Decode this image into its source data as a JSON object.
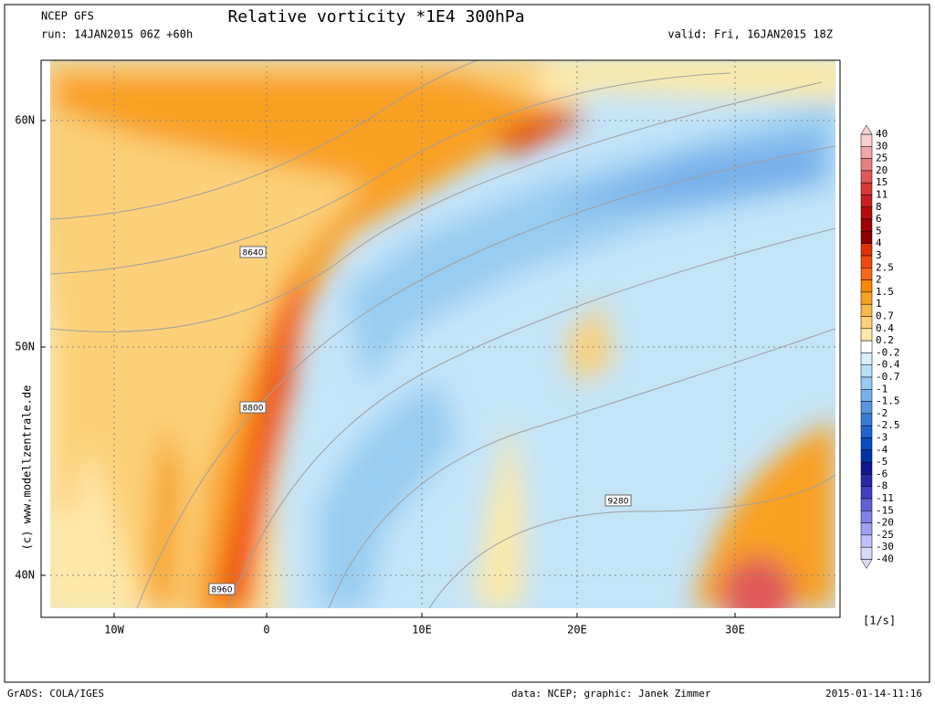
{
  "header": {
    "model": "NCEP GFS",
    "run": "run: 14JAN2015 06Z +60h",
    "title": "Relative vorticity *1E4 300hPa",
    "valid": "valid: Fri, 16JAN2015 18Z"
  },
  "map": {
    "lat_labels": [
      "60N",
      "50N",
      "40N"
    ],
    "lon_labels": [
      "10W",
      "0",
      "10E",
      "20E",
      "30E"
    ],
    "contour_labels": [
      "8640",
      "8800",
      "8960",
      "9280"
    ],
    "credit": "(c) www.modellzentrale.de"
  },
  "colorbar": {
    "labels": [
      "40",
      "30",
      "25",
      "20",
      "15",
      "11",
      "8",
      "6",
      "5",
      "4",
      "3",
      "2.5",
      "2",
      "1.5",
      "1",
      "0.7",
      "0.4",
      "0.2",
      "-0.2",
      "-0.4",
      "-0.7",
      "-1",
      "-1.5",
      "-2",
      "-2.5",
      "-3",
      "-4",
      "-5",
      "-6",
      "-8",
      "-11",
      "-15",
      "-20",
      "-25",
      "-30",
      "-40"
    ],
    "colors": [
      "#f8d0d0",
      "#f0a8a8",
      "#e88080",
      "#e05858",
      "#d83838",
      "#c82020",
      "#b40c0c",
      "#a00000",
      "#900000",
      "#e03000",
      "#f04810",
      "#f86818",
      "#f88800",
      "#f8a020",
      "#f8b848",
      "#fcd078",
      "#fde8a8",
      "#ffffff",
      "#d8f0fc",
      "#b8e0f8",
      "#98ccf0",
      "#78b0ec",
      "#5894e0",
      "#387cd8",
      "#2064d0",
      "#084cc0",
      "#0034a8",
      "#101890",
      "#2828a8",
      "#4040c0",
      "#6060d8",
      "#8080e8",
      "#a0a0f0",
      "#c0c0f8",
      "#d8d8fc"
    ],
    "unit": "[1/s]"
  },
  "footer": {
    "left": "GrADS: COLA/IGES",
    "middle": "data: NCEP; graphic: Janek Zimmer",
    "right": "2015-01-14-11:16"
  }
}
